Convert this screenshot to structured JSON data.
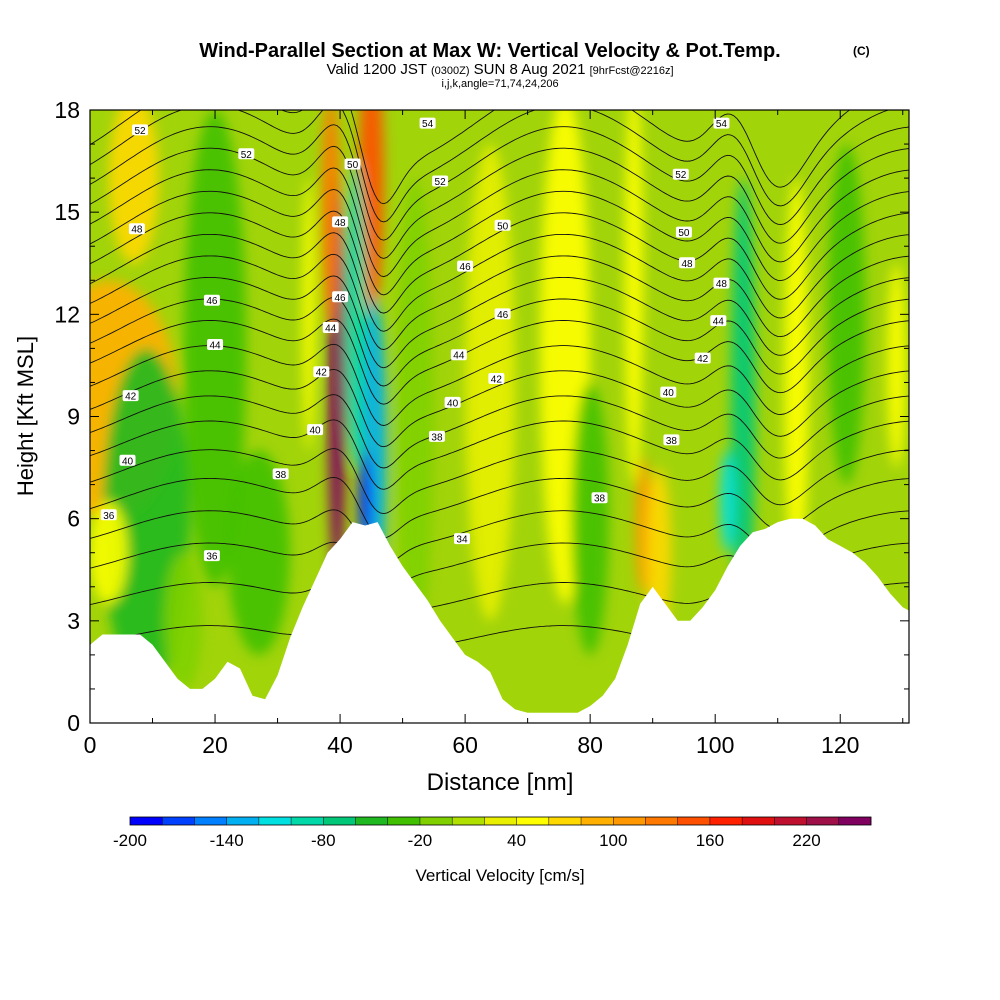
{
  "chart_data": {
    "type": "heatmap",
    "title": "Wind-Parallel Section at Max W: Vertical Velocity & Pot.Temp.",
    "title_mark": "(C)",
    "subtitle": {
      "valid_prefix": "Valid 1200 JST",
      "valid_utc": "(0300Z)",
      "valid_date": "SUN 8 Aug 2021",
      "forecast": "[9hrFcst@2216z]"
    },
    "cross_section_params": "i,j,k,angle=71,74,24,206",
    "xlabel": "Distance [nm]",
    "ylabel": "Height [Kft MSL]",
    "xlim": [
      0,
      131
    ],
    "ylim": [
      0,
      18
    ],
    "x_ticks": [
      "0",
      "20",
      "40",
      "60",
      "80",
      "100",
      "120"
    ],
    "y_ticks": [
      "0",
      "3",
      "6",
      "9",
      "12",
      "15",
      "18"
    ],
    "x_tick_values": [
      0,
      20,
      40,
      60,
      80,
      100,
      120
    ],
    "y_tick_values": [
      0,
      3,
      6,
      9,
      12,
      15,
      18
    ],
    "grid": false,
    "terrain_height_kft": [
      [
        0,
        2.3
      ],
      [
        2,
        2.6
      ],
      [
        4,
        2.6
      ],
      [
        6,
        2.6
      ],
      [
        8,
        2.6
      ],
      [
        10,
        2.3
      ],
      [
        12,
        1.8
      ],
      [
        14,
        1.3
      ],
      [
        16,
        1.0
      ],
      [
        18,
        1.0
      ],
      [
        20,
        1.3
      ],
      [
        22,
        1.8
      ],
      [
        24,
        1.6
      ],
      [
        26,
        0.8
      ],
      [
        28,
        0.7
      ],
      [
        30,
        1.4
      ],
      [
        32,
        2.5
      ],
      [
        34,
        3.4
      ],
      [
        36,
        4.2
      ],
      [
        38,
        5.0
      ],
      [
        40,
        5.4
      ],
      [
        42,
        5.9
      ],
      [
        44,
        5.8
      ],
      [
        46,
        5.9
      ],
      [
        48,
        5.2
      ],
      [
        50,
        4.6
      ],
      [
        52,
        4.1
      ],
      [
        54,
        3.6
      ],
      [
        56,
        3.0
      ],
      [
        58,
        2.5
      ],
      [
        60,
        2.0
      ],
      [
        62,
        1.8
      ],
      [
        64,
        1.5
      ],
      [
        66,
        0.7
      ],
      [
        68,
        0.4
      ],
      [
        70,
        0.3
      ],
      [
        72,
        0.3
      ],
      [
        74,
        0.3
      ],
      [
        76,
        0.3
      ],
      [
        78,
        0.3
      ],
      [
        80,
        0.5
      ],
      [
        82,
        0.8
      ],
      [
        84,
        1.3
      ],
      [
        86,
        2.3
      ],
      [
        88,
        3.5
      ],
      [
        90,
        4.0
      ],
      [
        92,
        3.5
      ],
      [
        94,
        3.0
      ],
      [
        96,
        3.0
      ],
      [
        98,
        3.4
      ],
      [
        100,
        3.9
      ],
      [
        102,
        4.6
      ],
      [
        104,
        5.2
      ],
      [
        106,
        5.6
      ],
      [
        108,
        5.7
      ],
      [
        110,
        5.9
      ],
      [
        112,
        6.0
      ],
      [
        114,
        6.0
      ],
      [
        116,
        5.8
      ],
      [
        118,
        5.4
      ],
      [
        120,
        5.2
      ],
      [
        122,
        5.0
      ],
      [
        124,
        4.7
      ],
      [
        126,
        4.3
      ],
      [
        128,
        3.8
      ],
      [
        130,
        3.4
      ],
      [
        131,
        3.3
      ]
    ],
    "vertical_velocity_features": [
      {
        "x": 3,
        "y": 9.5,
        "w": 22,
        "h": 7,
        "value": 80
      },
      {
        "x": 7,
        "y": 16,
        "w": 8,
        "h": 5,
        "value": 60
      },
      {
        "x": 9,
        "y": 6,
        "w": 14,
        "h": 10,
        "value": -50
      },
      {
        "x": 20,
        "y": 11,
        "w": 10,
        "h": 14,
        "value": -40
      },
      {
        "x": 27,
        "y": 5,
        "w": 10,
        "h": 6,
        "value": -30
      },
      {
        "x": 39.5,
        "y": 10,
        "w": 3,
        "h": 12,
        "value": 240
      },
      {
        "x": 38.5,
        "y": 15,
        "w": 3,
        "h": 7,
        "value": 120
      },
      {
        "x": 45,
        "y": 16,
        "w": 4,
        "h": 8,
        "value": 140
      },
      {
        "x": 42.5,
        "y": 12,
        "w": 3.5,
        "h": 9,
        "value": -100
      },
      {
        "x": 45.5,
        "y": 8,
        "w": 4,
        "h": 9,
        "value": -130
      },
      {
        "x": 44,
        "y": 6.5,
        "w": 2,
        "h": 3,
        "value": -190
      },
      {
        "x": 35,
        "y": 12,
        "w": 2,
        "h": 8,
        "value": 40
      },
      {
        "x": 52,
        "y": 9,
        "w": 6,
        "h": 14,
        "value": -20
      },
      {
        "x": 64,
        "y": 10,
        "w": 8,
        "h": 14,
        "value": 35
      },
      {
        "x": 76,
        "y": 11,
        "w": 8,
        "h": 15,
        "value": 40
      },
      {
        "x": 80,
        "y": 6,
        "w": 6,
        "h": 8,
        "value": -30
      },
      {
        "x": 88.5,
        "y": 5.8,
        "w": 2.5,
        "h": 4,
        "value": 110
      },
      {
        "x": 87,
        "y": 13,
        "w": 3,
        "h": 12,
        "value": 45
      },
      {
        "x": 91,
        "y": 5,
        "w": 4,
        "h": 5,
        "value": 60
      },
      {
        "x": 104.5,
        "y": 9.5,
        "w": 4,
        "h": 13,
        "value": -70
      },
      {
        "x": 102,
        "y": 6.5,
        "w": 2.5,
        "h": 3,
        "value": -120
      },
      {
        "x": 113,
        "y": 10,
        "w": 4,
        "h": 12,
        "value": 45
      },
      {
        "x": 121,
        "y": 12,
        "w": 6,
        "h": 10,
        "value": -30
      },
      {
        "x": 129,
        "y": 10.5,
        "w": 3,
        "h": 6,
        "value": 50
      },
      {
        "x": 3,
        "y": 5,
        "w": 6,
        "h": 3,
        "value": 55
      },
      {
        "x": 15,
        "y": 3,
        "w": 6,
        "h": 4,
        "value": -20
      }
    ],
    "isentropes": [
      {
        "label": "34",
        "base": 2.5
      },
      {
        "label": "",
        "base": 3.7
      },
      {
        "label": "36",
        "base": 4.8
      },
      {
        "label": "",
        "base": 5.7
      },
      {
        "label": "38",
        "base": 6.6
      },
      {
        "label": "",
        "base": 7.4
      },
      {
        "label": "40",
        "base": 8.2
      },
      {
        "label": "",
        "base": 8.9
      },
      {
        "label": "42",
        "base": 9.6
      },
      {
        "label": "",
        "base": 10.3
      },
      {
        "label": "44",
        "base": 11.0
      },
      {
        "label": "",
        "base": 11.6
      },
      {
        "label": "46",
        "base": 12.2
      },
      {
        "label": "",
        "base": 12.8
      },
      {
        "label": "48",
        "base": 13.4
      },
      {
        "label": "",
        "base": 14.0
      },
      {
        "label": "50",
        "base": 14.6
      },
      {
        "label": "",
        "base": 15.2
      },
      {
        "label": "52",
        "base": 15.8
      },
      {
        "label": "",
        "base": 16.4
      },
      {
        "label": "54",
        "base": 17.0
      },
      {
        "label": "",
        "base": 17.6
      }
    ],
    "contour_labels": [
      {
        "text": "52",
        "x": 8,
        "y": 17.4
      },
      {
        "text": "52",
        "x": 25,
        "y": 16.7
      },
      {
        "text": "54",
        "x": 54,
        "y": 17.6
      },
      {
        "text": "54",
        "x": 101,
        "y": 17.6
      },
      {
        "text": "50",
        "x": 42,
        "y": 16.4
      },
      {
        "text": "52",
        "x": 56,
        "y": 15.9
      },
      {
        "text": "52",
        "x": 94.5,
        "y": 16.1
      },
      {
        "text": "48",
        "x": 7.5,
        "y": 14.5
      },
      {
        "text": "48",
        "x": 40,
        "y": 14.7
      },
      {
        "text": "50",
        "x": 66,
        "y": 14.6
      },
      {
        "text": "50",
        "x": 95,
        "y": 14.4
      },
      {
        "text": "48",
        "x": 95.5,
        "y": 13.5
      },
      {
        "text": "46",
        "x": 60,
        "y": 13.4
      },
      {
        "text": "46",
        "x": 19.5,
        "y": 12.4
      },
      {
        "text": "46",
        "x": 40,
        "y": 12.5
      },
      {
        "text": "48",
        "x": 101,
        "y": 12.9
      },
      {
        "text": "46",
        "x": 66,
        "y": 12.0
      },
      {
        "text": "44",
        "x": 100.5,
        "y": 11.8
      },
      {
        "text": "44",
        "x": 20,
        "y": 11.1
      },
      {
        "text": "44",
        "x": 38.5,
        "y": 11.6
      },
      {
        "text": "44",
        "x": 59,
        "y": 10.8
      },
      {
        "text": "42",
        "x": 98,
        "y": 10.7
      },
      {
        "text": "42",
        "x": 37,
        "y": 10.3
      },
      {
        "text": "42",
        "x": 65,
        "y": 10.1
      },
      {
        "text": "42",
        "x": 6.5,
        "y": 9.6
      },
      {
        "text": "40",
        "x": 92.5,
        "y": 9.7
      },
      {
        "text": "40",
        "x": 58,
        "y": 9.4
      },
      {
        "text": "40",
        "x": 36,
        "y": 8.6
      },
      {
        "text": "38",
        "x": 55.5,
        "y": 8.4
      },
      {
        "text": "38",
        "x": 93,
        "y": 8.3
      },
      {
        "text": "40",
        "x": 6,
        "y": 7.7
      },
      {
        "text": "38",
        "x": 30.5,
        "y": 7.3
      },
      {
        "text": "38",
        "x": 81.5,
        "y": 6.6
      },
      {
        "text": "36",
        "x": 3,
        "y": 6.1
      },
      {
        "text": "34",
        "x": 59.5,
        "y": 5.4
      },
      {
        "text": "36",
        "x": 19.5,
        "y": 4.9
      }
    ],
    "colorbar": {
      "label": "Vertical Velocity [cm/s]",
      "min": -200,
      "max": 250,
      "step": 20,
      "tick_labels": [
        "-200",
        "-140",
        "-80",
        "-20",
        "40",
        "100",
        "160",
        "220"
      ],
      "colors": [
        "#0000ff",
        "#0040ff",
        "#0080ff",
        "#00b0f0",
        "#00e0e0",
        "#00d8a8",
        "#00c878",
        "#20b820",
        "#40c000",
        "#80d000",
        "#b0e000",
        "#e8f000",
        "#ffff00",
        "#ffd800",
        "#ffb000",
        "#ff9800",
        "#ff7800",
        "#ff5000",
        "#ff2000",
        "#e01010",
        "#c01030",
        "#a01048",
        "#800060"
      ]
    }
  }
}
